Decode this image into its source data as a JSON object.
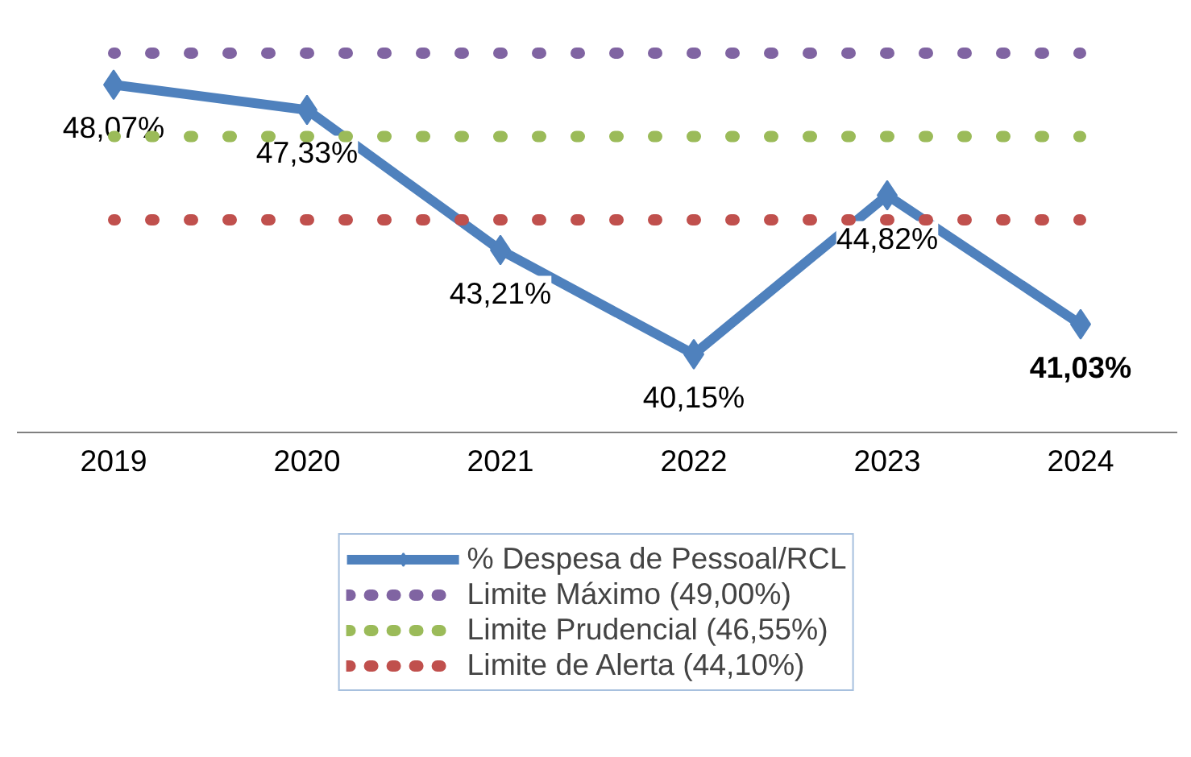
{
  "chart_data": {
    "type": "line",
    "categories": [
      "2019",
      "2020",
      "2021",
      "2022",
      "2023",
      "2024"
    ],
    "series": [
      {
        "name": "% Despesa de Pessoal/RCL",
        "color": "#4f81bd",
        "values": [
          48.07,
          47.33,
          43.21,
          40.15,
          44.82,
          41.03
        ],
        "marker": "diamond",
        "line_style": "solid",
        "data_labels": true,
        "value_labels": [
          "48,07%",
          "47,33%",
          "43,21%",
          "40,15%",
          "44,82%",
          "41,03%"
        ]
      },
      {
        "name": "Limite Máximo (49,00%)",
        "color": "#8064a2",
        "values": [
          49,
          49,
          49,
          49,
          49,
          49
        ],
        "line_style": "dotted"
      },
      {
        "name": "Limite Prudencial (46,55%)",
        "color": "#9bbb59",
        "values": [
          46.55,
          46.55,
          46.55,
          46.55,
          46.55,
          46.55
        ],
        "line_style": "dotted"
      },
      {
        "name": "Limite de Alerta (44,10%)",
        "color": "#c0504d",
        "values": [
          44.1,
          44.1,
          44.1,
          44.1,
          44.1,
          44.1
        ],
        "line_style": "dotted"
      }
    ],
    "legend": "bottom",
    "tick_labels": "x"
  }
}
